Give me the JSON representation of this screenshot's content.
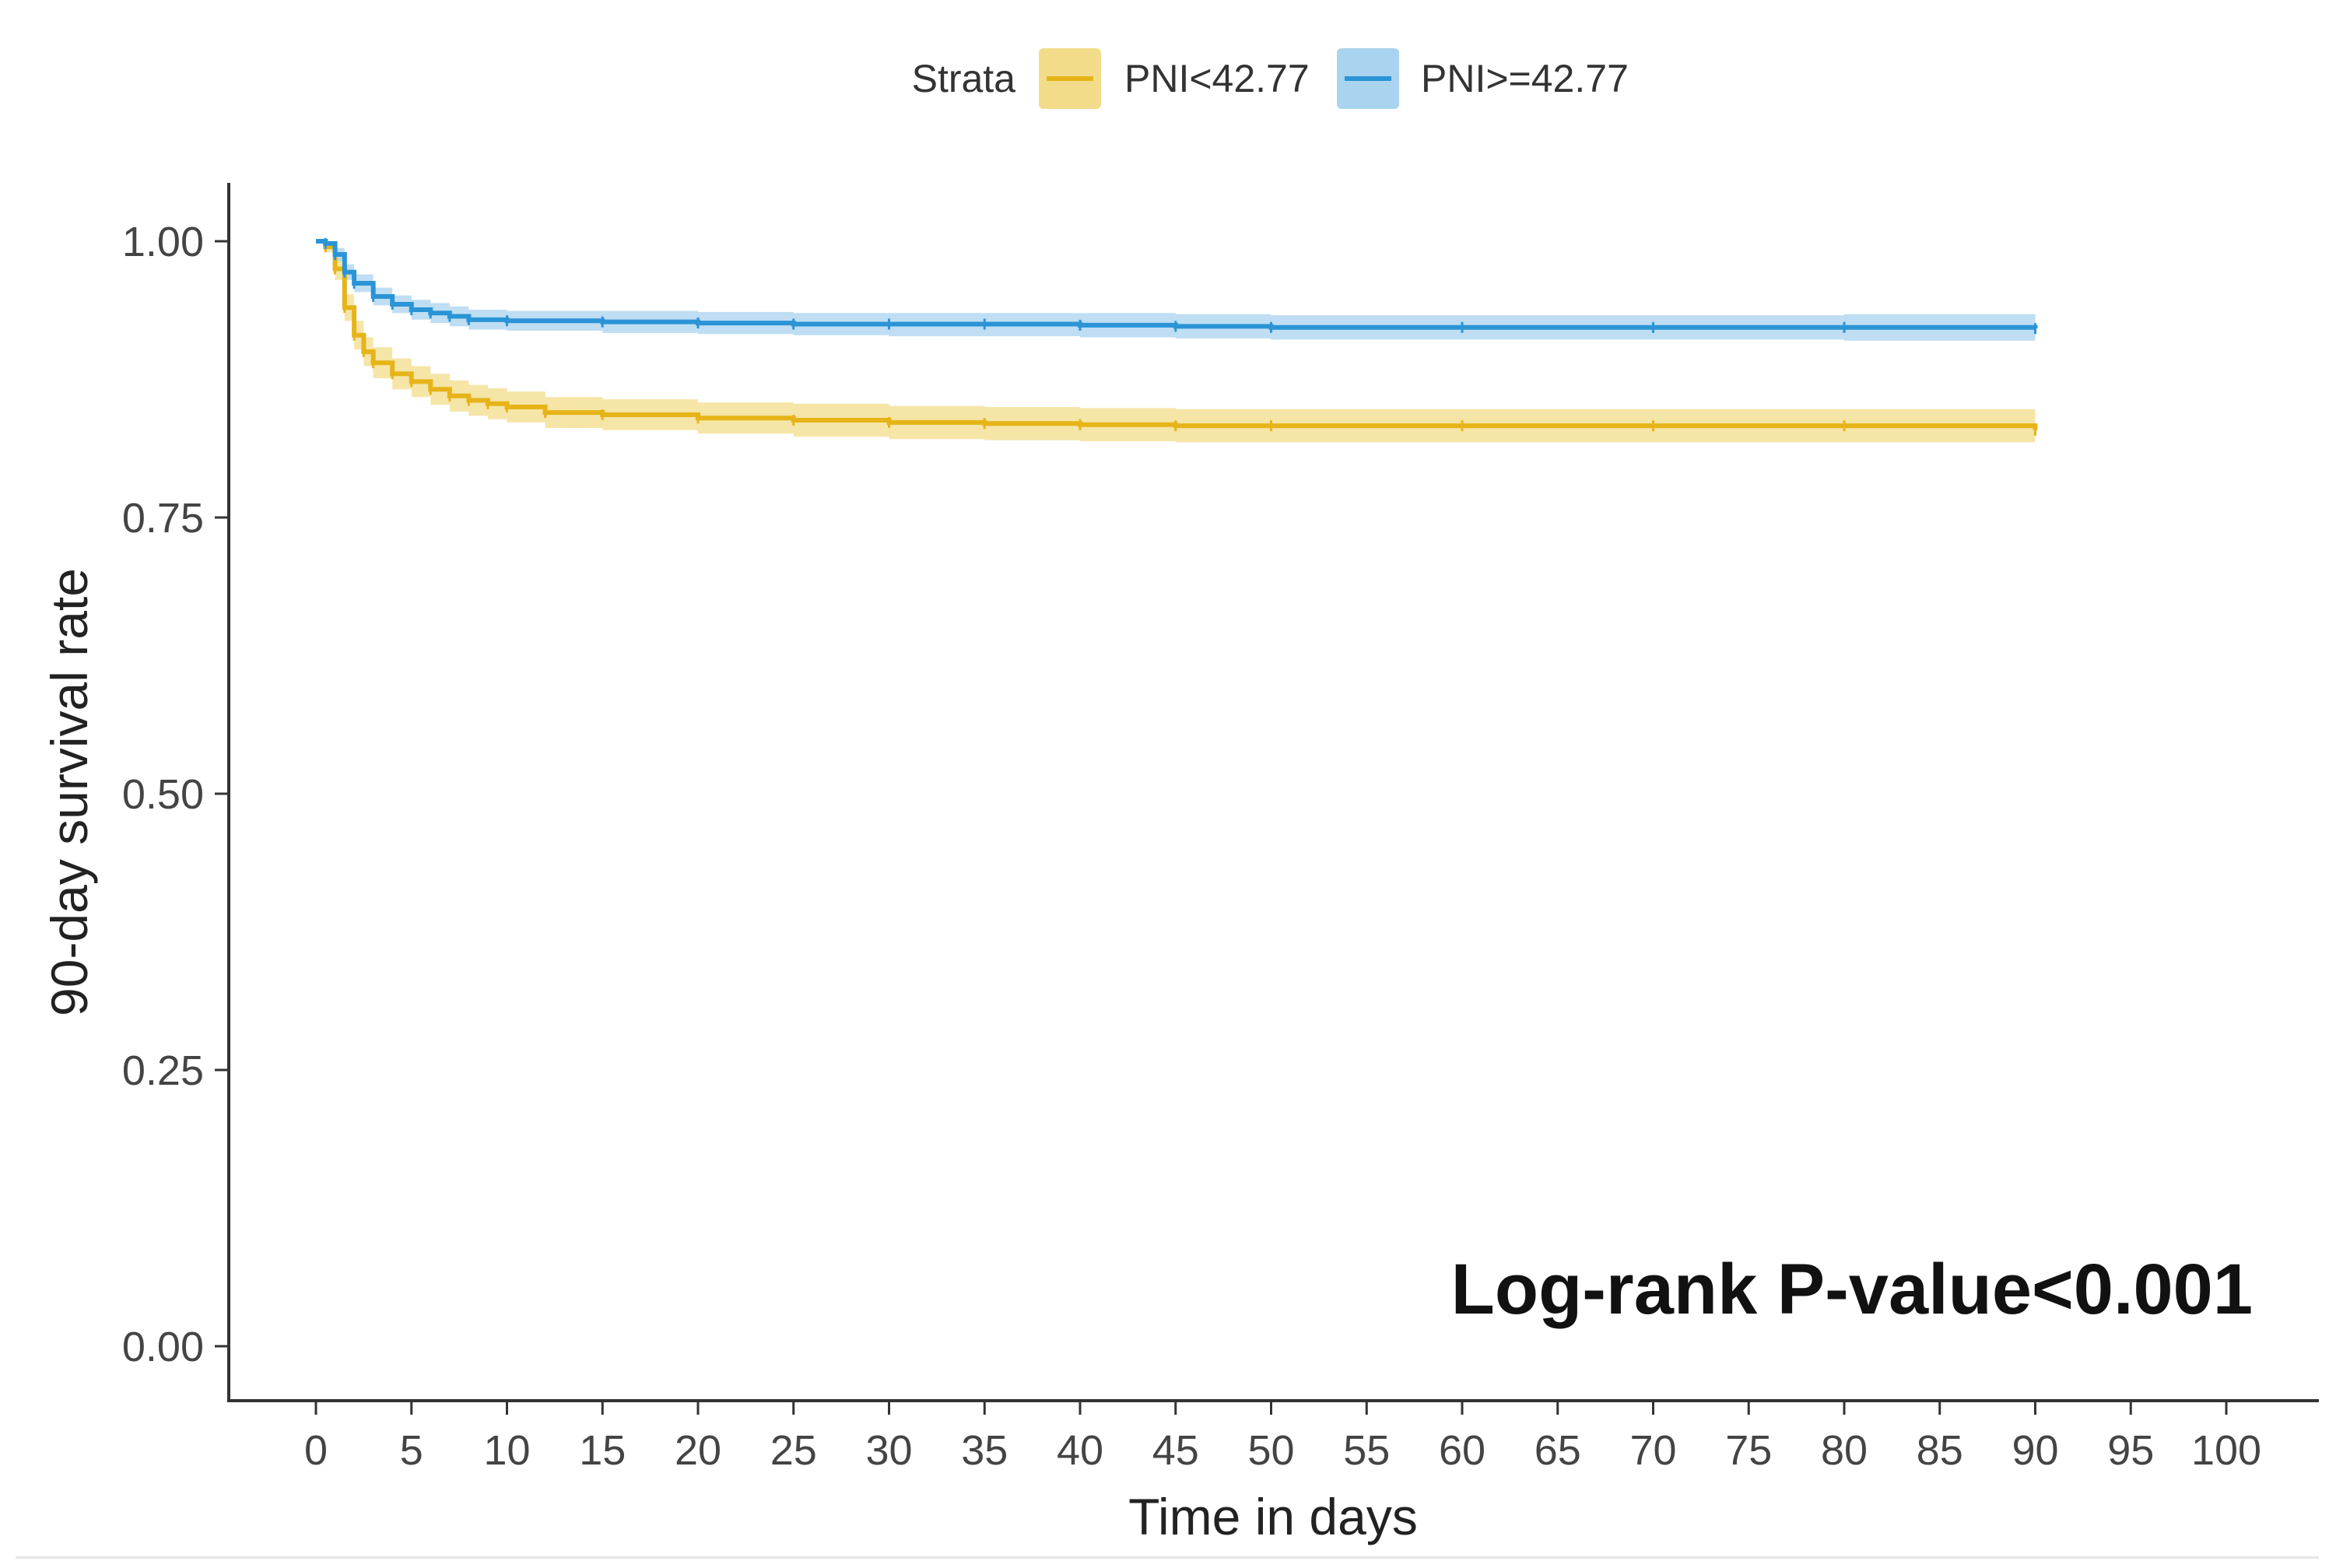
{
  "chart_data": {
    "type": "line",
    "subtype": "kaplan-meier survival curve with confidence bands",
    "title": "",
    "xlabel": "Time in days",
    "ylabel": "90-day survival rate",
    "xlim": [
      -4,
      105
    ],
    "ylim": [
      -0.05,
      1.05
    ],
    "x_ticks": [
      0,
      5,
      10,
      15,
      20,
      25,
      30,
      35,
      40,
      45,
      50,
      55,
      60,
      65,
      70,
      75,
      80,
      85,
      90,
      95,
      100
    ],
    "x_tick_labels": [
      "0",
      "5",
      "10",
      "15",
      "20",
      "25",
      "30",
      "35",
      "40",
      "45",
      "50",
      "55",
      "60",
      "65",
      "70",
      "75",
      "80",
      "85",
      "90",
      "95",
      "100"
    ],
    "y_ticks": [
      0,
      0.25,
      0.5,
      0.75,
      1.0
    ],
    "y_tick_labels": [
      "0.00",
      "0.25",
      "0.50",
      "0.75",
      "1.00"
    ],
    "grid": false,
    "legend": {
      "title": "Strata",
      "position": "top-center",
      "entries": [
        "PNI<42.77",
        "PNI>=42.77"
      ]
    },
    "annotation": "Log-rank P-value<0.001",
    "series": [
      {
        "name": "PNI<42.77",
        "color": "#e6b418",
        "band_color": "#f2dc8a",
        "x": [
          0,
          0.5,
          1,
          1.5,
          2,
          2.5,
          3,
          4,
          5,
          6,
          7,
          8,
          9,
          10,
          12,
          15,
          20,
          25,
          30,
          35,
          40,
          45,
          50,
          60,
          70,
          80,
          90
        ],
        "y": [
          1.0,
          0.995,
          0.975,
          0.94,
          0.915,
          0.9,
          0.89,
          0.88,
          0.873,
          0.866,
          0.86,
          0.856,
          0.853,
          0.85,
          0.845,
          0.843,
          0.84,
          0.838,
          0.836,
          0.835,
          0.834,
          0.833,
          0.833,
          0.833,
          0.833,
          0.833,
          0.829
        ],
        "lower": [
          1.0,
          0.99,
          0.965,
          0.928,
          0.902,
          0.887,
          0.876,
          0.866,
          0.859,
          0.852,
          0.846,
          0.842,
          0.839,
          0.836,
          0.831,
          0.829,
          0.826,
          0.823,
          0.821,
          0.82,
          0.819,
          0.818,
          0.818,
          0.818,
          0.818,
          0.818,
          0.814
        ],
        "upper": [
          1.0,
          1.0,
          0.985,
          0.952,
          0.928,
          0.913,
          0.904,
          0.894,
          0.887,
          0.88,
          0.874,
          0.87,
          0.867,
          0.864,
          0.859,
          0.857,
          0.854,
          0.853,
          0.851,
          0.85,
          0.849,
          0.848,
          0.848,
          0.848,
          0.848,
          0.848,
          0.844
        ]
      },
      {
        "name": "PNI>=42.77",
        "color": "#2b94d6",
        "band_color": "#a9d3ef",
        "x": [
          0,
          0.5,
          1,
          1.5,
          2,
          3,
          4,
          5,
          6,
          7,
          8,
          10,
          15,
          20,
          25,
          30,
          35,
          40,
          45,
          50,
          60,
          70,
          80,
          90
        ],
        "y": [
          1.0,
          0.998,
          0.988,
          0.972,
          0.962,
          0.95,
          0.943,
          0.938,
          0.935,
          0.932,
          0.929,
          0.928,
          0.927,
          0.926,
          0.925,
          0.925,
          0.925,
          0.924,
          0.923,
          0.922,
          0.922,
          0.922,
          0.922,
          0.921
        ],
        "lower": [
          1.0,
          0.995,
          0.982,
          0.965,
          0.954,
          0.942,
          0.935,
          0.929,
          0.926,
          0.923,
          0.92,
          0.919,
          0.917,
          0.916,
          0.915,
          0.914,
          0.914,
          0.913,
          0.912,
          0.911,
          0.911,
          0.911,
          0.91,
          0.909
        ],
        "upper": [
          1.0,
          1.0,
          0.994,
          0.979,
          0.97,
          0.958,
          0.951,
          0.947,
          0.944,
          0.941,
          0.938,
          0.937,
          0.937,
          0.936,
          0.935,
          0.935,
          0.935,
          0.935,
          0.934,
          0.933,
          0.933,
          0.933,
          0.934,
          0.933
        ]
      }
    ]
  }
}
